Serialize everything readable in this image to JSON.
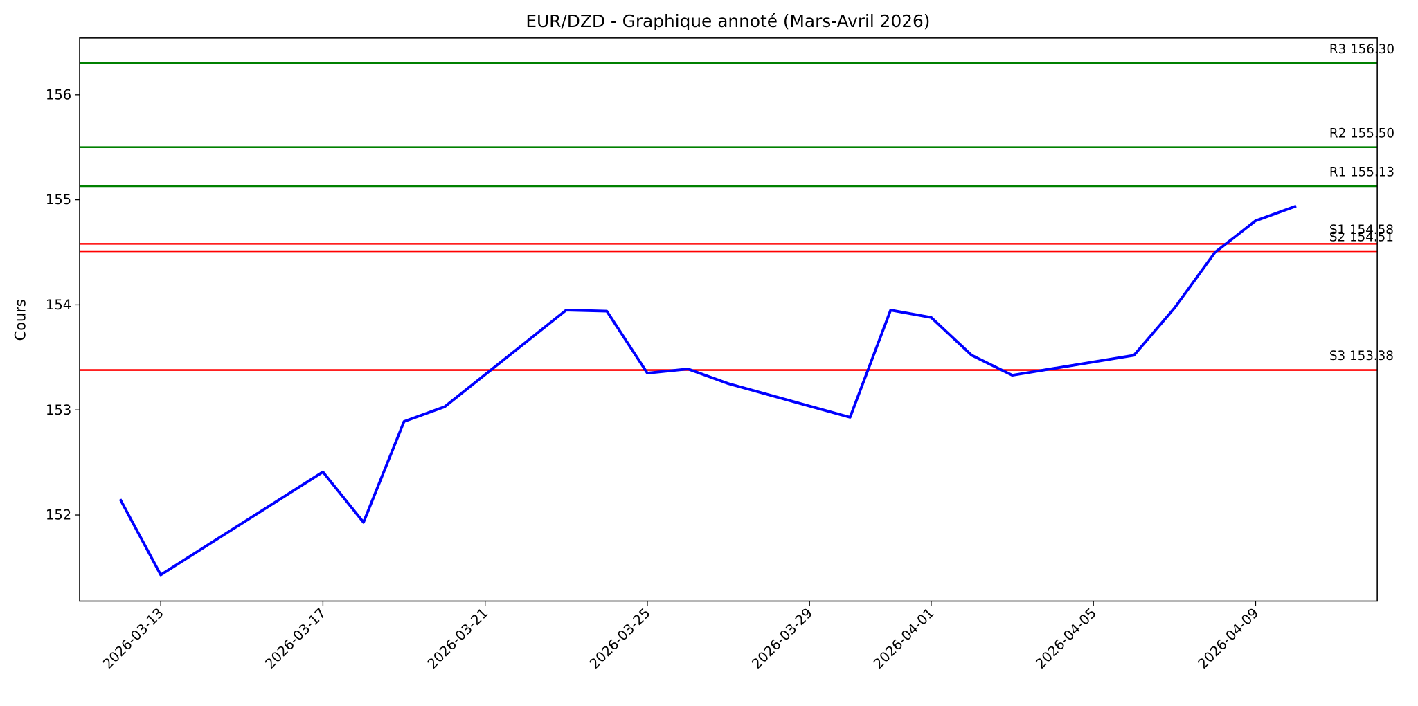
{
  "chart_data": {
    "type": "line",
    "title": "EUR/DZD - Graphique annoté (Mars-Avril 2026)",
    "y_label": "Cours",
    "x": [
      "2026-03-12",
      "2026-03-13",
      "2026-03-17",
      "2026-03-18",
      "2026-03-19",
      "2026-03-20",
      "2026-03-23",
      "2026-03-24",
      "2026-03-25",
      "2026-03-26",
      "2026-03-27",
      "2026-03-30",
      "2026-03-31",
      "2026-04-01",
      "2026-04-02",
      "2026-04-03",
      "2026-04-06",
      "2026-04-07",
      "2026-04-08",
      "2026-04-09",
      "2026-04-10"
    ],
    "values": [
      152.15,
      151.43,
      152.41,
      151.93,
      152.89,
      153.03,
      153.95,
      153.94,
      153.35,
      153.39,
      153.25,
      152.93,
      153.95,
      153.88,
      153.52,
      153.33,
      153.52,
      153.97,
      154.5,
      154.8,
      154.94
    ],
    "color": "#0000ff",
    "levels": [
      {
        "name": "R3",
        "value": 156.3,
        "value_label": "156.30",
        "color": "#008000"
      },
      {
        "name": "R2",
        "value": 155.5,
        "value_label": "155.50",
        "color": "#008000"
      },
      {
        "name": "R1",
        "value": 155.13,
        "color": "#008000"
      },
      {
        "name": "S1",
        "value": 154.58,
        "color": "#ff0000"
      },
      {
        "name": "S2",
        "value": 154.51,
        "color": "#ff0000"
      },
      {
        "name": "S3",
        "value": 153.38,
        "color": "#ff0000"
      }
    ],
    "xlim": [
      "2026-03-11",
      "2026-04-12"
    ],
    "xticks": [
      "2026-03-13",
      "2026-03-17",
      "2026-03-21",
      "2026-03-25",
      "2026-03-29",
      "2026-04-01",
      "2026-04-05",
      "2026-04-09"
    ],
    "ylim": [
      151.18,
      156.54
    ],
    "yticks": [
      152,
      153,
      154,
      155,
      156
    ],
    "grid": false
  }
}
